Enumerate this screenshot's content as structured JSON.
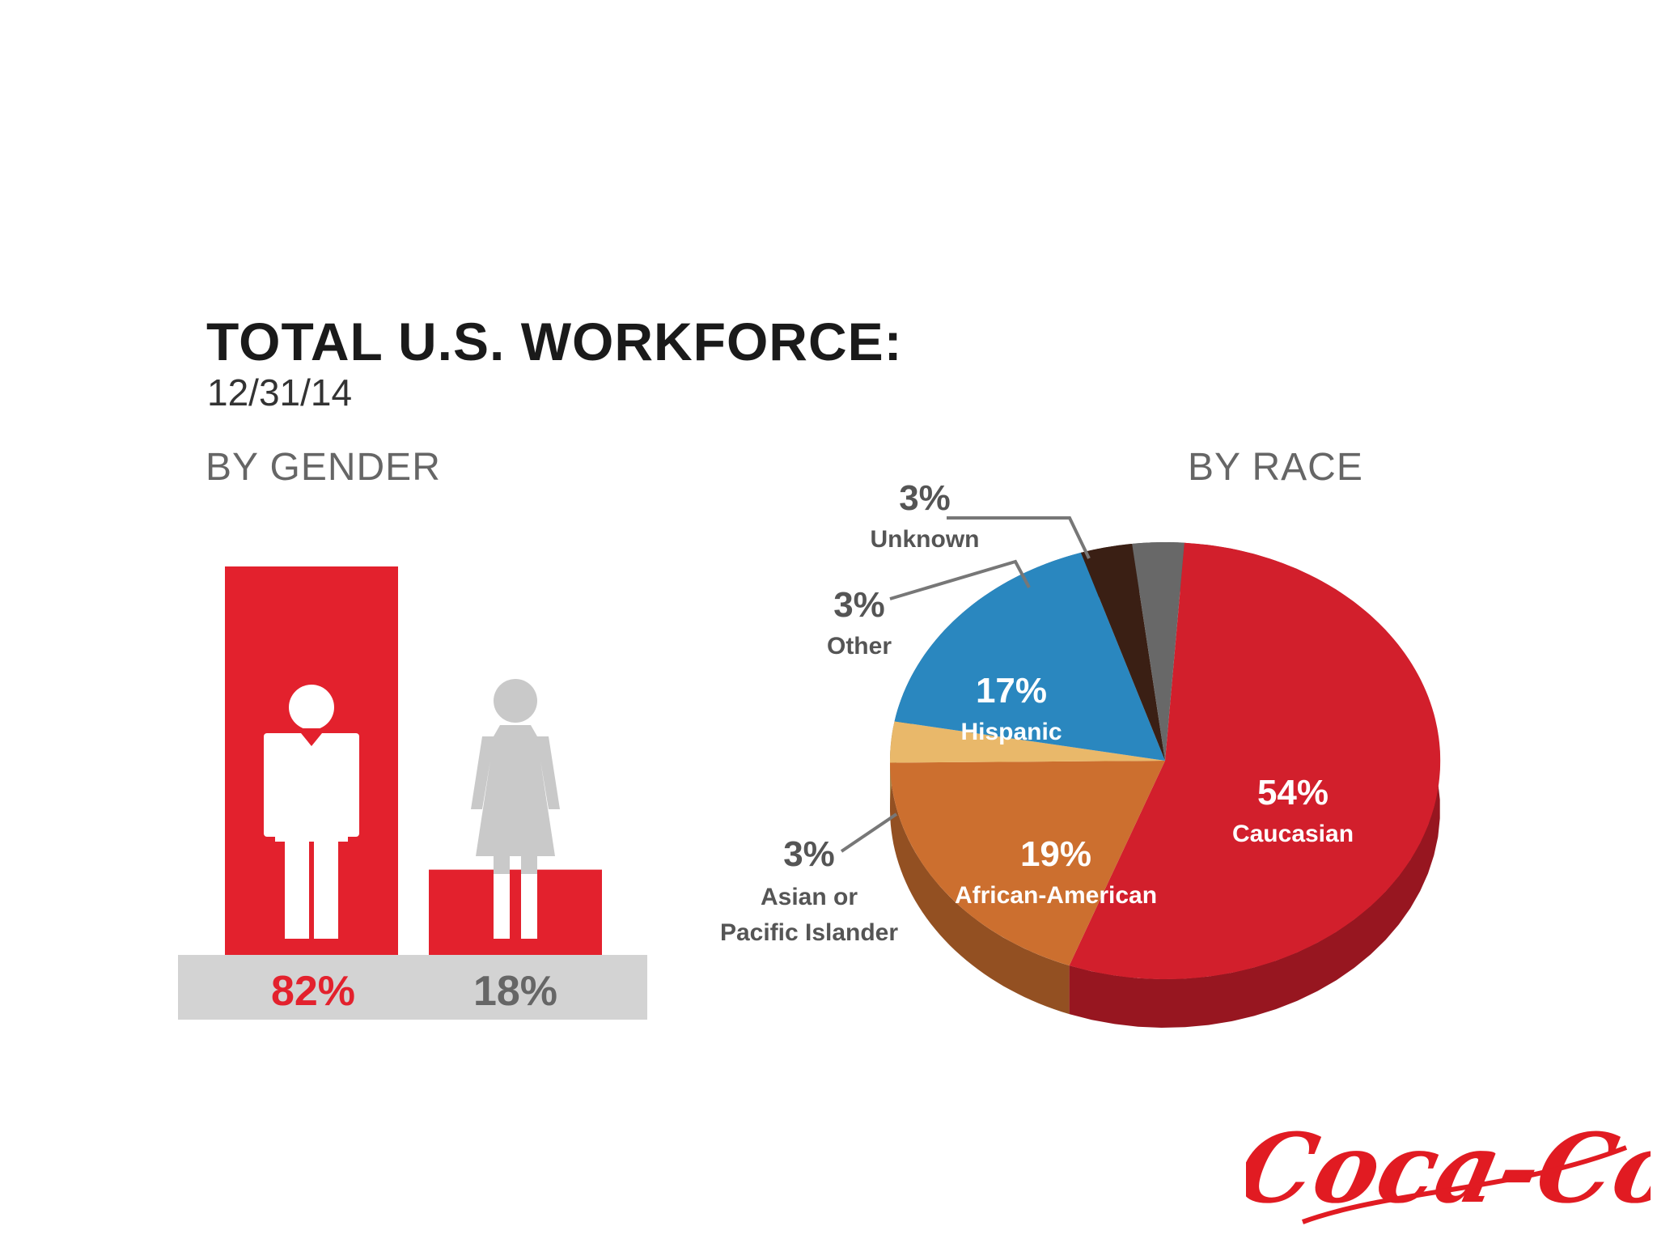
{
  "title": "TOTAL U.S. WORKFORCE:",
  "date": "12/31/14",
  "colors": {
    "red": "#e3212d",
    "gray": "#c9c9c9",
    "baseline": "#d3d3d3",
    "dark_text": "#666666",
    "caucasian": "#d21f2c",
    "african_american": "#cc6f2f",
    "asian": "#e9b86a",
    "hispanic": "#2a87bf",
    "other": "#3a1f14",
    "unknown": "#686868"
  },
  "logo": {
    "text": "Coca-Cola"
  },
  "chart_data": [
    {
      "type": "bar",
      "title": "BY GENDER",
      "categories": [
        "male-icon",
        "female-icon"
      ],
      "values": [
        82,
        18
      ],
      "labels": [
        "82%",
        "18%"
      ],
      "ylim": [
        0,
        100
      ],
      "grid": false
    },
    {
      "type": "pie",
      "title": "BY RACE",
      "slices": [
        {
          "name": "Caucasian",
          "value": 54,
          "label": "54%"
        },
        {
          "name": "African-American",
          "value": 19,
          "label": "19%"
        },
        {
          "name": "Asian or Pacific Islander",
          "name_lines": [
            "Asian or",
            "Pacific Islander"
          ],
          "value": 3,
          "label": "3%"
        },
        {
          "name": "Hispanic",
          "value": 17,
          "label": "17%"
        },
        {
          "name": "Other",
          "value": 3,
          "label": "3%"
        },
        {
          "name": "Unknown",
          "value": 3,
          "label": "3%"
        }
      ]
    }
  ]
}
